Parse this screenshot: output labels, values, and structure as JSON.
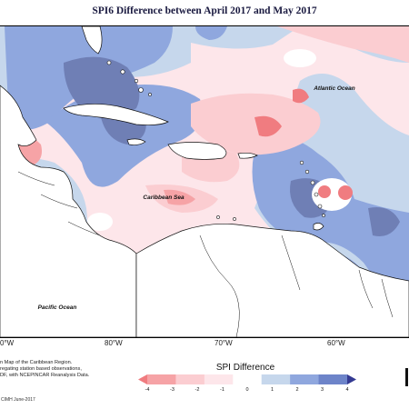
{
  "title": "SPI6 Difference between April 2017 and May 2017",
  "map": {
    "labels": {
      "atlantic": "Atlantic Ocean",
      "caribbean": "Caribbean Sea",
      "pacific": "Pacific Ocean"
    },
    "longitude_ticks": [
      "0°W",
      "80°W",
      "70°W",
      "60°W"
    ]
  },
  "footer": {
    "note_lines": [
      "n Map of the Caribbean Region.",
      "regating station based observations,",
      "DF, with NCEPINCAR Reanalysis Data."
    ],
    "credit": "CIMH June-2017"
  },
  "legend": {
    "title": "SPI Difference",
    "tick_labels": [
      "-4",
      "-3",
      "-2",
      "-1",
      "0",
      "1",
      "2",
      "3",
      "4"
    ],
    "colors": [
      "#f07c80",
      "#f6a3a6",
      "#fbcdd1",
      "#fde6ea",
      "#ffffff",
      "#c6d7ec",
      "#8fa7de",
      "#6d84c9",
      "#343a92"
    ]
  },
  "colors": {
    "negative_light": "#fde6ea",
    "negative_mid": "#f6a3a6",
    "negative_strong": "#f07c80",
    "positive_light": "#c6d7ec",
    "positive_mid": "#8fa7de",
    "positive_strong": "#6f7fb5",
    "land": "#ffffff",
    "coast": "#111111"
  }
}
